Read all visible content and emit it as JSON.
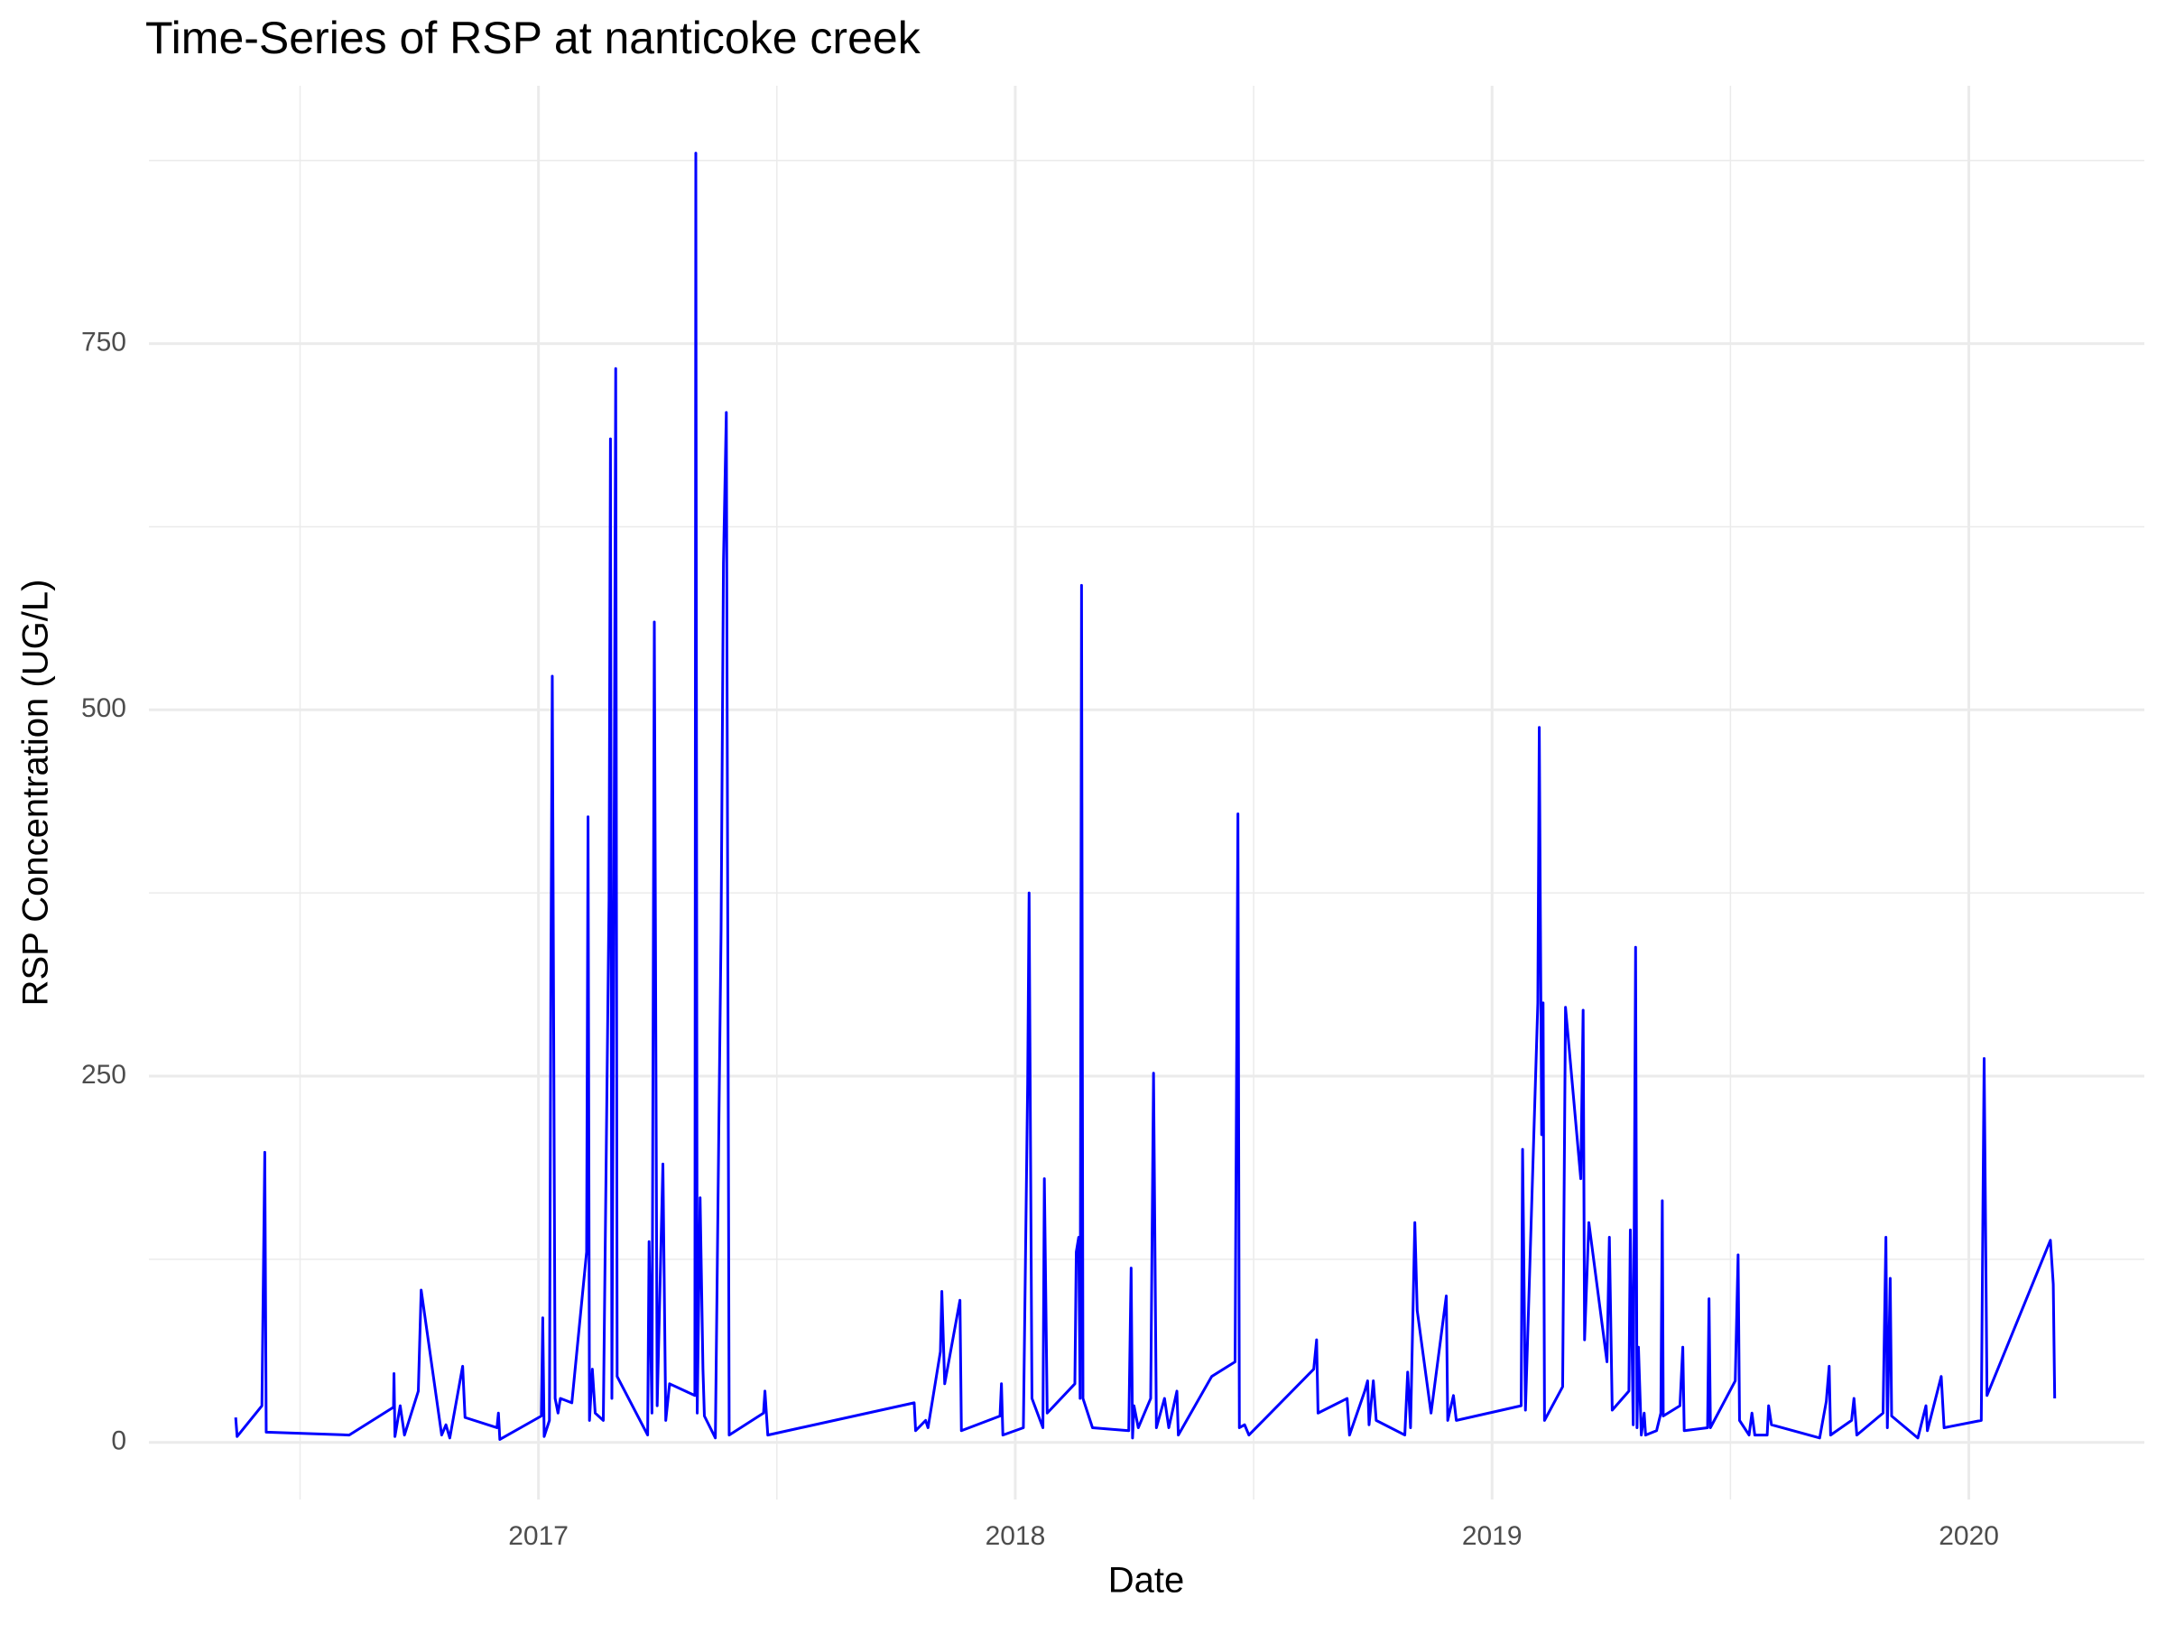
{
  "chart_data": {
    "type": "line",
    "title": "Time-Series of RSP at nanticoke creek",
    "x_label": "Date",
    "y_label": "RSP Concentration (UG/L)",
    "color": "#0000ff",
    "grid": true,
    "minor_grid": true,
    "xlim": [
      2016.183,
      2020.368
    ],
    "ylim": [
      -39,
      926
    ],
    "xticks": [
      2017,
      2018,
      2019,
      2020
    ],
    "yticks": [
      0,
      250,
      500,
      750
    ],
    "x": [
      2016.365,
      2016.368,
      2016.42,
      2016.426,
      2016.429,
      2016.603,
      2016.696,
      2016.697,
      2016.699,
      2016.71,
      2016.719,
      2016.748,
      2016.754,
      2016.797,
      2016.806,
      2016.814,
      2016.841,
      2016.846,
      2016.913,
      2016.916,
      2016.919,
      2017.006,
      2017.009,
      2017.012,
      2017.023,
      2017.026,
      2017.029,
      2017.035,
      2017.041,
      2017.046,
      2017.07,
      2017.101,
      2017.104,
      2017.107,
      2017.113,
      2017.119,
      2017.136,
      2017.148,
      2017.151,
      2017.154,
      2017.159,
      2017.162,
      2017.165,
      2017.229,
      2017.232,
      2017.238,
      2017.243,
      2017.249,
      2017.261,
      2017.267,
      2017.275,
      2017.328,
      2017.33,
      2017.333,
      2017.339,
      2017.345,
      2017.348,
      2017.371,
      2017.383,
      2017.388,
      2017.394,
      2017.4,
      2017.472,
      2017.475,
      2017.481,
      2017.788,
      2017.791,
      2017.812,
      2017.817,
      2017.843,
      2017.846,
      2017.852,
      2017.884,
      2017.887,
      2017.968,
      2017.971,
      2017.974,
      2018.017,
      2018.026,
      2018.029,
      2018.035,
      2018.058,
      2018.061,
      2018.067,
      2018.125,
      2018.128,
      2018.133,
      2018.136,
      2018.139,
      2018.142,
      2018.162,
      2018.238,
      2018.243,
      2018.246,
      2018.249,
      2018.258,
      2018.284,
      2018.29,
      2018.296,
      2018.313,
      2018.322,
      2018.339,
      2018.342,
      2018.412,
      2018.461,
      2018.467,
      2018.47,
      2018.481,
      2018.49,
      2018.626,
      2018.632,
      2018.635,
      2018.696,
      2018.701,
      2018.733,
      2018.739,
      2018.742,
      2018.751,
      2018.757,
      2018.817,
      2018.823,
      2018.829,
      2018.838,
      2018.843,
      2018.872,
      2018.904,
      2018.907,
      2018.919,
      2018.925,
      2019.061,
      2019.064,
      2019.07,
      2019.096,
      2019.099,
      2019.104,
      2019.107,
      2019.11,
      2019.148,
      2019.154,
      2019.186,
      2019.191,
      2019.194,
      2019.203,
      2019.241,
      2019.246,
      2019.252,
      2019.287,
      2019.29,
      2019.296,
      2019.301,
      2019.304,
      2019.307,
      2019.313,
      2019.319,
      2019.322,
      2019.345,
      2019.354,
      2019.357,
      2019.359,
      2019.394,
      2019.4,
      2019.403,
      2019.452,
      2019.455,
      2019.458,
      2019.51,
      2019.516,
      2019.519,
      2019.539,
      2019.545,
      2019.551,
      2019.577,
      2019.58,
      2019.586,
      2019.687,
      2019.701,
      2019.707,
      2019.71,
      2019.754,
      2019.759,
      2019.765,
      2019.82,
      2019.826,
      2019.829,
      2019.835,
      2019.838,
      2019.893,
      2019.91,
      2019.913,
      2019.942,
      2019.948,
      2020.026,
      2020.032,
      2020.038,
      2020.171,
      2020.177,
      2020.18
    ],
    "values": [
      17,
      4,
      25,
      198,
      7,
      5,
      24,
      47,
      4,
      25,
      5,
      35,
      104,
      5,
      12,
      3,
      52,
      17,
      10,
      20,
      2,
      18,
      85,
      4,
      15,
      315,
      523,
      30,
      20,
      30,
      27,
      130,
      427,
      15,
      50,
      20,
      15,
      370,
      685,
      30,
      440,
      733,
      45,
      5,
      137,
      20,
      560,
      25,
      190,
      15,
      40,
      32,
      880,
      20,
      167,
      50,
      18,
      3,
      350,
      600,
      703,
      5,
      20,
      35,
      5,
      27,
      8,
      15,
      10,
      62,
      103,
      40,
      97,
      8,
      18,
      40,
      5,
      10,
      245,
      375,
      30,
      10,
      180,
      20,
      40,
      130,
      140,
      30,
      585,
      30,
      10,
      8,
      119,
      3,
      25,
      10,
      30,
      252,
      10,
      30,
      10,
      35,
      5,
      45,
      55,
      429,
      10,
      12,
      5,
      50,
      70,
      20,
      30,
      5,
      35,
      42,
      12,
      42,
      15,
      5,
      48,
      10,
      150,
      90,
      20,
      100,
      15,
      32,
      15,
      25,
      200,
      22,
      300,
      488,
      210,
      300,
      15,
      38,
      297,
      180,
      295,
      70,
      150,
      55,
      140,
      22,
      35,
      145,
      12,
      338,
      10,
      65,
      5,
      20,
      5,
      8,
      20,
      165,
      18,
      25,
      65,
      8,
      10,
      98,
      10,
      42,
      128,
      15,
      5,
      20,
      5,
      5,
      25,
      12,
      3,
      28,
      52,
      5,
      15,
      30,
      5,
      20,
      140,
      10,
      112,
      18,
      3,
      25,
      8,
      45,
      10,
      15,
      262,
      32,
      138,
      108,
      30
    ]
  }
}
